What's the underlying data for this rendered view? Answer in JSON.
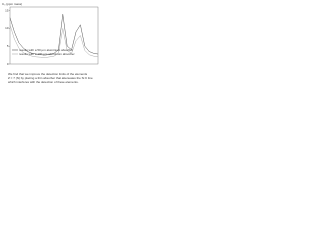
{
  "chart_data": {
    "type": "line",
    "y_label": "C₀ (ppm mass)",
    "x": [
      0,
      1,
      2,
      3,
      4,
      5,
      6,
      7,
      8,
      9,
      10,
      11,
      12,
      13,
      14,
      15,
      16,
      17,
      18,
      19,
      20
    ],
    "series": [
      {
        "name": "results with a 50 µm aluminium absorber",
        "color": "#555555",
        "values": [
          13,
          9,
          6,
          4.5,
          3.5,
          3,
          2.8,
          2.6,
          2.5,
          2.7,
          3,
          4,
          14,
          5,
          4,
          9,
          11,
          5,
          3.5,
          3,
          2.8
        ]
      },
      {
        "name": "results with a 100 µm aluminium absorber",
        "color": "#aaaaaa",
        "values": [
          11,
          7,
          4.5,
          3.2,
          2.6,
          2.2,
          2,
          1.9,
          1.8,
          2,
          2.2,
          3,
          10,
          3.8,
          3,
          6.5,
          8,
          3.8,
          2.6,
          2.2,
          2
        ]
      }
    ],
    "xlim": [
      0,
      20
    ],
    "ylim": [
      0,
      16
    ],
    "yticks": [
      0,
      5,
      10,
      15
    ],
    "notes": [
      "We find that we improve the detection limits of the elements",
      "Z = 7 (N) by placing a thin absorber that attenuates the Si K line",
      "which interferes with the detection of these elements."
    ]
  }
}
